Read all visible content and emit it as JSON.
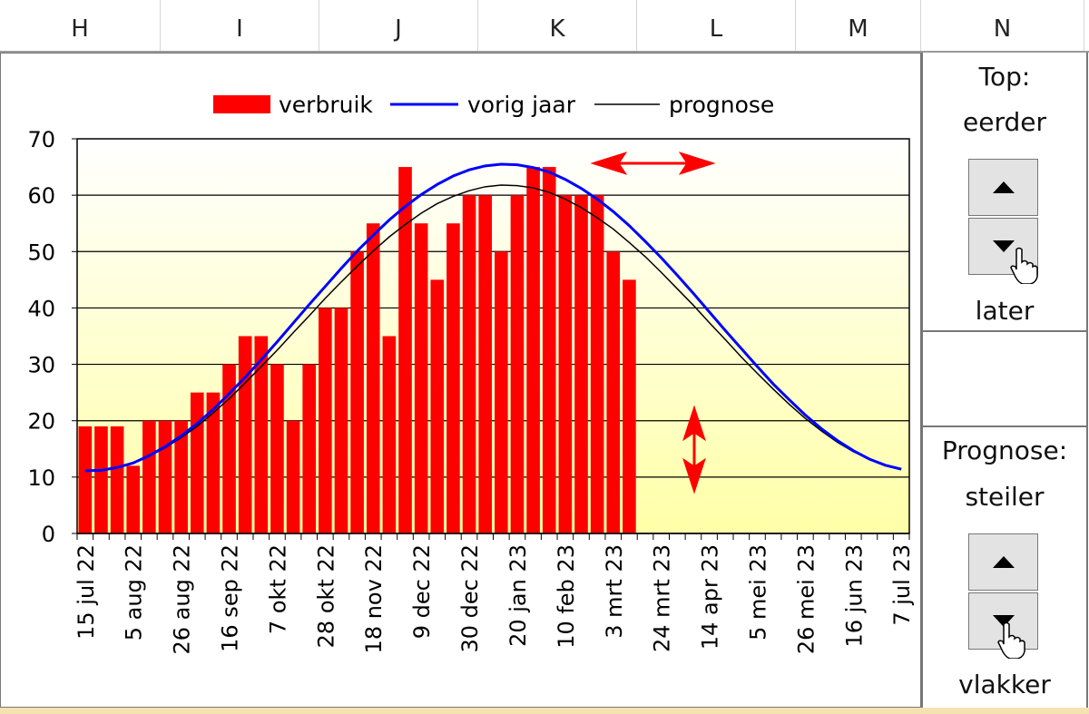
{
  "columns": [
    "H",
    "I",
    "J",
    "K",
    "L",
    "M",
    "N"
  ],
  "panel": {
    "top_title": "Top:",
    "top_up_label": "eerder",
    "top_down_label": "later",
    "prognose_title": "Prognose:",
    "prognose_up_label": "steiler",
    "prognose_down_label": "vlakker"
  },
  "colors": {
    "verbruik": "#ff0000",
    "vorig_jaar": "#0000ff",
    "prognose": "#000000",
    "plot_bg_top": "#ffffff",
    "plot_bg_bottom": "#ffffa8",
    "arrows": "#ff0000"
  },
  "chart_data": {
    "type": "bar+line",
    "legend": [
      "verbruik",
      "vorig jaar",
      "prognose"
    ],
    "legend_position": "top",
    "ylim": [
      0,
      70
    ],
    "yticks": [
      0,
      10,
      20,
      30,
      40,
      50,
      60,
      70
    ],
    "grid": true,
    "xtick_labels": [
      "15 jul 22",
      "5 aug 22",
      "26 aug 22",
      "16 sep 22",
      "7 okt 22",
      "28 okt 22",
      "18 nov 22",
      "9 dec 22",
      "30 dec 22",
      "20 jan 23",
      "10 feb 23",
      "3 mrt 23",
      "24 mrt 23",
      "14 apr 23",
      "5 mei 23",
      "26 mei 23",
      "16 jun 23",
      "7 jul 23"
    ],
    "xtick_every": 3,
    "n_weeks": 52,
    "series": [
      {
        "name": "verbruik",
        "type": "bar",
        "values": [
          19,
          19,
          19,
          12,
          20,
          20,
          20,
          25,
          25,
          30,
          35,
          35,
          30,
          20,
          30,
          40,
          40,
          50,
          55,
          35,
          65,
          55,
          45,
          55,
          60,
          60,
          50,
          60,
          65,
          65,
          60,
          60,
          60,
          50,
          45
        ]
      },
      {
        "name": "vorig jaar",
        "type": "line",
        "values": [
          11.1,
          11.2,
          11.7,
          12.5,
          13.8,
          15.4,
          17.3,
          19.5,
          22.0,
          24.8,
          27.7,
          30.8,
          34.0,
          37.3,
          40.6,
          43.8,
          47.0,
          50.1,
          52.9,
          55.6,
          58.0,
          60.1,
          61.9,
          63.4,
          64.5,
          65.2,
          65.5,
          65.4,
          64.9,
          64.1,
          62.8,
          61.2,
          59.3,
          57.1,
          54.6,
          51.8,
          48.9,
          45.8,
          42.6,
          39.3,
          36.0,
          32.8,
          29.6,
          26.5,
          23.7,
          21.0,
          18.6,
          16.5,
          14.7,
          13.2,
          12.1,
          11.4
        ]
      },
      {
        "name": "prognose",
        "type": "line",
        "values": [
          11.2,
          11.3,
          11.7,
          12.5,
          13.7,
          15.2,
          17.0,
          19.0,
          21.4,
          23.9,
          26.7,
          29.6,
          32.5,
          35.6,
          38.6,
          41.7,
          44.6,
          47.4,
          50.1,
          52.6,
          54.8,
          56.8,
          58.5,
          59.8,
          60.8,
          61.5,
          61.8,
          61.7,
          61.3,
          60.5,
          59.3,
          57.8,
          56.0,
          54.0,
          51.6,
          49.1,
          46.3,
          43.4,
          40.5,
          37.4,
          34.4,
          31.3,
          28.4,
          25.6,
          22.9,
          20.4,
          18.2,
          16.2,
          14.5,
          13.2,
          12.2,
          11.5
        ]
      }
    ]
  }
}
